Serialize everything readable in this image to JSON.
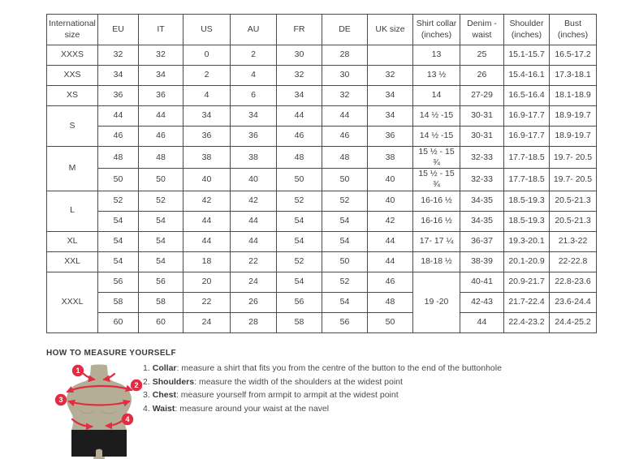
{
  "colors": {
    "accent_red": "#e12c41",
    "mannequin_tan": "#b4ae97",
    "mannequin_shade": "#a49e87",
    "shorts_black": "#1c1c1c",
    "border_gray": "#4b4b4b"
  },
  "table": {
    "headers": [
      "International size",
      "EU",
      "IT",
      "US",
      "AU",
      "FR",
      "DE",
      "UK size",
      "Shirt collar (inches)",
      "Denim - waist",
      "Shoulder (inches)",
      "Bust (inches)"
    ],
    "rows": [
      [
        "XXXS",
        "32",
        "32",
        "0",
        "2",
        "30",
        "28",
        "",
        "13",
        "25",
        "15.1-15.7",
        "16.5-17.2"
      ],
      [
        "XXS",
        "34",
        "34",
        "2",
        "4",
        "32",
        "30",
        "32",
        "13 ½",
        "26",
        "15.4-16.1",
        "17.3-18.1"
      ],
      [
        "XS",
        "36",
        "36",
        "4",
        "6",
        "34",
        "32",
        "34",
        "14",
        "27-29",
        "16.5-16.4",
        "18.1-18.9"
      ],
      [
        {
          "t": "S",
          "rs": 2
        },
        "44",
        "44",
        "34",
        "34",
        "44",
        "44",
        "34",
        "14 ½ -15",
        "30-31",
        "16.9-17.7",
        "18.9-19.7"
      ],
      [
        "46",
        "46",
        "36",
        "36",
        "46",
        "46",
        "36",
        "14 ½ -15",
        "30-31",
        "16.9-17.7",
        "18.9-19.7"
      ],
      [
        {
          "t": "M",
          "rs": 2
        },
        "48",
        "48",
        "38",
        "38",
        "48",
        "48",
        "38",
        "15 ½ - 15 ¾",
        "32-33",
        "17.7-18.5",
        "19.7- 20.5"
      ],
      [
        "50",
        "50",
        "40",
        "40",
        "50",
        "50",
        "40",
        "15 ½ - 15 ¾",
        "32-33",
        "17.7-18.5",
        "19.7- 20.5"
      ],
      [
        {
          "t": "L",
          "rs": 2
        },
        "52",
        "52",
        "42",
        "42",
        "52",
        "52",
        "40",
        "16-16 ½",
        "34-35",
        "18.5-19.3",
        "20.5-21.3"
      ],
      [
        "54",
        "54",
        "44",
        "44",
        "54",
        "54",
        "42",
        "16-16 ½",
        "34-35",
        "18.5-19.3",
        "20.5-21.3"
      ],
      [
        "XL",
        "54",
        "54",
        "44",
        "44",
        "54",
        "54",
        "44",
        "17- 17 ¼",
        "36-37",
        "19.3-20.1",
        "21.3-22"
      ],
      [
        "XXL",
        "54",
        "54",
        "18",
        "22",
        "52",
        "50",
        "44",
        "18-18 ½",
        "38-39",
        "20.1-20.9",
        "22-22.8"
      ],
      [
        {
          "t": "XXXL",
          "rs": 3
        },
        "56",
        "56",
        "20",
        "24",
        "54",
        "52",
        "46",
        {
          "t": "19 -20",
          "rs": 3
        },
        "40-41",
        "20.9-21.7",
        "22.8-23.6"
      ],
      [
        "58",
        "58",
        "22",
        "26",
        "56",
        "54",
        "48",
        "42-43",
        "21.7-22.4",
        "23.6-24.4"
      ],
      [
        "60",
        "60",
        "24",
        "28",
        "58",
        "56",
        "50",
        "44",
        "22.4-23.2",
        "24.4-25.2"
      ]
    ]
  },
  "measure": {
    "title": "HOW TO MEASURE YOURSELF",
    "badges": [
      "1",
      "2",
      "3",
      "4"
    ],
    "steps": [
      {
        "num": "1.",
        "label": "Collar",
        "text": ": measure a shirt that fits you from the centre of the button to the end of the buttonhole"
      },
      {
        "num": "2.",
        "label": "Shoulders",
        "text": ": measure the width of the shoulders at the widest point"
      },
      {
        "num": "3.",
        "label": "Chest",
        "text": ": measure yourself from armpit to armpit at the widest point"
      },
      {
        "num": "4.",
        "label": "Waist",
        "text": ": measure around your waist at the navel"
      }
    ]
  }
}
